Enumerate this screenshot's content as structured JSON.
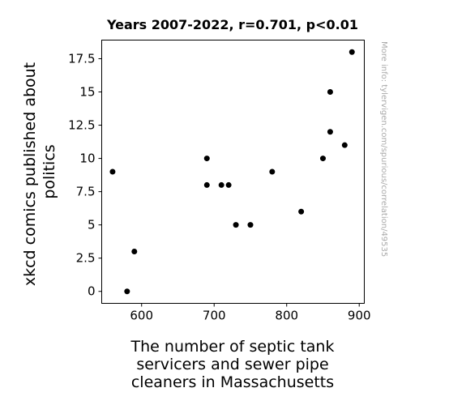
{
  "chart_data": {
    "type": "scatter",
    "title": "Years 2007-2022, r=0.701, p<0.01",
    "xlabel": [
      "The number of septic tank",
      "servicers and sewer pipe",
      "cleaners in Massachusetts"
    ],
    "ylabel": [
      "xkcd comics published about",
      "politics"
    ],
    "xlim": [
      545,
      907
    ],
    "ylim": [
      -0.9,
      18.9
    ],
    "xticks": [
      600,
      700,
      800,
      900
    ],
    "xtick_labels": [
      "600",
      "700",
      "800",
      "900"
    ],
    "yticks": [
      0,
      2.5,
      5,
      7.5,
      10,
      12.5,
      15,
      17.5
    ],
    "ytick_labels": [
      "0",
      "2.5",
      "5",
      "7.5",
      "10",
      "12.5",
      "15",
      "17.5"
    ],
    "grid": false,
    "marker_color": "#000000",
    "points": [
      {
        "x": 560,
        "y": 9
      },
      {
        "x": 580,
        "y": 0
      },
      {
        "x": 590,
        "y": 3
      },
      {
        "x": 690,
        "y": 10
      },
      {
        "x": 690,
        "y": 8
      },
      {
        "x": 710,
        "y": 8
      },
      {
        "x": 720,
        "y": 8
      },
      {
        "x": 730,
        "y": 5
      },
      {
        "x": 750,
        "y": 5
      },
      {
        "x": 780,
        "y": 9
      },
      {
        "x": 820,
        "y": 6
      },
      {
        "x": 850,
        "y": 10
      },
      {
        "x": 860,
        "y": 15
      },
      {
        "x": 860,
        "y": 12
      },
      {
        "x": 880,
        "y": 11
      },
      {
        "x": 890,
        "y": 18
      }
    ]
  },
  "watermark": "More info: tylervigen.com/spurious/correlation/49535"
}
